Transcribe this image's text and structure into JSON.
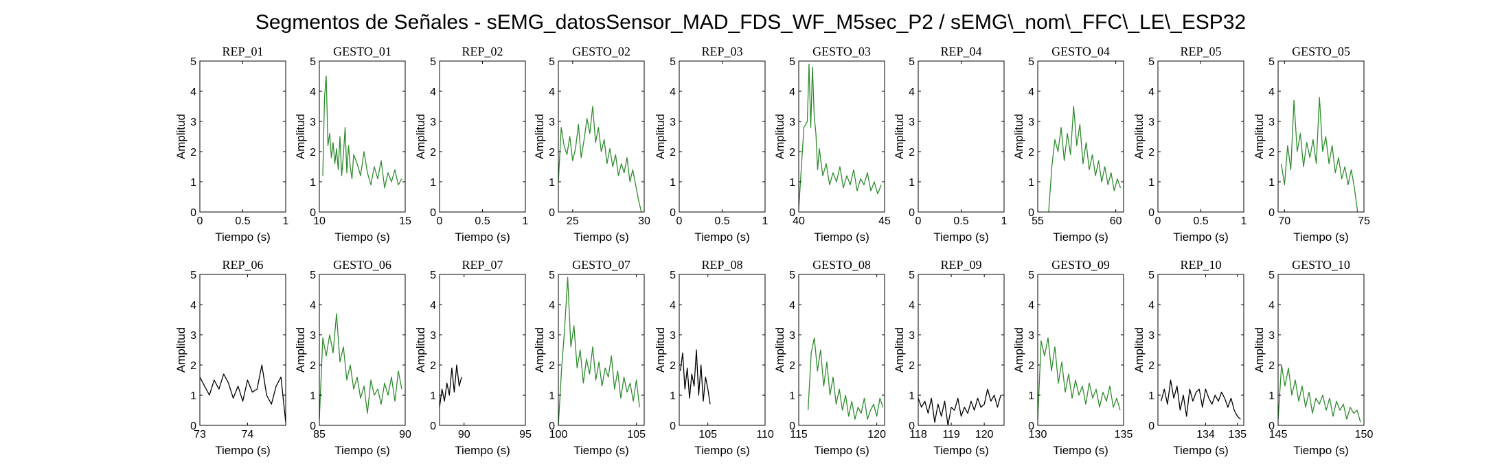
{
  "figure_title": "Segmentos de Señales - sEMG_datosSensor_MAD_FDS_WF_M5sec_P2 / sEMG\\_nom\\_FFC\\_LE\\_ESP32",
  "colors": {
    "rep": "#000000",
    "gesto": "#2e8b2e",
    "axis": "#000000"
  },
  "chart_data": [
    {
      "type": "line",
      "title": "REP_01",
      "xlabel": "Tiempo (s)",
      "ylabel": "Amplitud",
      "xlim": [
        0,
        1
      ],
      "ylim": [
        0,
        5
      ],
      "xticks": [
        0,
        0.5,
        1
      ],
      "xtick_labels": [
        "0",
        "0.5",
        "1"
      ],
      "yticks": [
        0,
        1,
        2,
        3,
        4,
        5
      ],
      "color": "rep",
      "x": [],
      "y": []
    },
    {
      "type": "line",
      "title": "GESTO_01",
      "xlabel": "Tiempo (s)",
      "ylabel": "Amplitud",
      "xlim": [
        10,
        15
      ],
      "ylim": [
        0,
        5
      ],
      "xticks": [
        10,
        15
      ],
      "xtick_labels": [
        "10",
        "15"
      ],
      "yticks": [
        0,
        1,
        2,
        3,
        4,
        5
      ],
      "color": "gesto",
      "x": [
        10.2,
        10.3,
        10.4,
        10.5,
        10.6,
        10.7,
        10.8,
        10.9,
        11.0,
        11.1,
        11.2,
        11.3,
        11.4,
        11.5,
        11.6,
        11.7,
        11.8,
        11.9,
        12.0,
        12.2,
        12.4,
        12.6,
        12.8,
        13.0,
        13.2,
        13.4,
        13.6,
        13.8,
        14.0,
        14.2,
        14.4,
        14.6,
        14.8
      ],
      "y": [
        1.2,
        3.8,
        4.5,
        2.2,
        2.6,
        1.8,
        2.3,
        1.6,
        2.1,
        1.4,
        2.5,
        1.2,
        1.9,
        2.8,
        1.3,
        2.2,
        1.5,
        1.1,
        1.9,
        1.6,
        1.2,
        2.0,
        1.3,
        0.9,
        1.5,
        1.1,
        1.7,
        0.8,
        1.3,
        1.0,
        1.4,
        0.9,
        1.1
      ]
    },
    {
      "type": "line",
      "title": "REP_02",
      "xlabel": "Tiempo (s)",
      "ylabel": "Amplitud",
      "xlim": [
        0,
        1
      ],
      "ylim": [
        0,
        5
      ],
      "xticks": [
        0,
        0.5,
        1
      ],
      "xtick_labels": [
        "0",
        "0.5",
        "1"
      ],
      "yticks": [
        0,
        1,
        2,
        3,
        4,
        5
      ],
      "color": "rep",
      "x": [],
      "y": []
    },
    {
      "type": "line",
      "title": "GESTO_02",
      "xlabel": "Tiempo (s)",
      "ylabel": "Amplitud",
      "xlim": [
        24,
        30
      ],
      "ylim": [
        0,
        5
      ],
      "xticks": [
        25,
        30
      ],
      "xtick_labels": [
        "25",
        "30"
      ],
      "yticks": [
        0,
        1,
        2,
        3,
        4,
        5
      ],
      "color": "gesto",
      "x": [
        24.0,
        24.2,
        24.4,
        24.6,
        24.8,
        25.0,
        25.2,
        25.4,
        25.6,
        25.8,
        26.0,
        26.2,
        26.4,
        26.6,
        26.8,
        27.0,
        27.2,
        27.4,
        27.6,
        27.8,
        28.0,
        28.2,
        28.4,
        28.6,
        28.8,
        29.0,
        29.2,
        29.4,
        29.6,
        29.8
      ],
      "y": [
        1.0,
        2.8,
        2.2,
        1.9,
        2.5,
        1.7,
        2.1,
        2.9,
        1.8,
        2.4,
        3.1,
        2.6,
        3.5,
        2.3,
        2.8,
        2.0,
        2.4,
        1.6,
        2.1,
        1.5,
        1.9,
        1.2,
        1.6,
        1.3,
        1.8,
        1.0,
        1.4,
        0.9,
        0.4,
        0.0
      ]
    },
    {
      "type": "line",
      "title": "REP_03",
      "xlabel": "Tiempo (s)",
      "ylabel": "Amplitud",
      "xlim": [
        0,
        1
      ],
      "ylim": [
        0,
        5
      ],
      "xticks": [
        0,
        0.5,
        1
      ],
      "xtick_labels": [
        "0",
        "0.5",
        "1"
      ],
      "yticks": [
        0,
        1,
        2,
        3,
        4,
        5
      ],
      "color": "rep",
      "x": [],
      "y": []
    },
    {
      "type": "line",
      "title": "GESTO_03",
      "xlabel": "Tiempo (s)",
      "ylabel": "Amplitud",
      "xlim": [
        40,
        45
      ],
      "ylim": [
        0,
        5
      ],
      "xticks": [
        40,
        45
      ],
      "xtick_labels": [
        "40",
        "45"
      ],
      "yticks": [
        0,
        1,
        2,
        3,
        4,
        5
      ],
      "color": "gesto",
      "x": [
        40.0,
        40.3,
        40.5,
        40.6,
        40.7,
        40.8,
        40.9,
        41.0,
        41.1,
        41.2,
        41.4,
        41.6,
        41.8,
        42.0,
        42.2,
        42.4,
        42.6,
        42.8,
        43.0,
        43.2,
        43.4,
        43.6,
        43.8,
        44.0,
        44.2,
        44.4,
        44.6,
        44.8
      ],
      "y": [
        0.1,
        2.8,
        3.0,
        4.9,
        2.8,
        4.8,
        3.2,
        2.6,
        1.4,
        2.1,
        1.2,
        1.6,
        0.9,
        1.3,
        1.0,
        1.5,
        0.8,
        1.2,
        0.9,
        1.4,
        0.7,
        1.1,
        0.9,
        1.3,
        0.7,
        1.0,
        0.6,
        0.9
      ]
    },
    {
      "type": "line",
      "title": "REP_04",
      "xlabel": "Tiempo (s)",
      "ylabel": "Amplitud",
      "xlim": [
        0,
        1
      ],
      "ylim": [
        0,
        5
      ],
      "xticks": [
        0,
        0.5,
        1
      ],
      "xtick_labels": [
        "0",
        "0.5",
        "1"
      ],
      "yticks": [
        0,
        1,
        2,
        3,
        4,
        5
      ],
      "color": "rep",
      "x": [],
      "y": []
    },
    {
      "type": "line",
      "title": "GESTO_04",
      "xlabel": "Tiempo (s)",
      "ylabel": "Amplitud",
      "xlim": [
        55,
        60.5
      ],
      "ylim": [
        0,
        5
      ],
      "xticks": [
        55,
        60
      ],
      "xtick_labels": [
        "55",
        "60"
      ],
      "yticks": [
        0,
        1,
        2,
        3,
        4,
        5
      ],
      "color": "gesto",
      "x": [
        55.7,
        55.9,
        56.1,
        56.3,
        56.5,
        56.7,
        56.9,
        57.1,
        57.3,
        57.5,
        57.7,
        57.9,
        58.1,
        58.3,
        58.5,
        58.7,
        58.9,
        59.1,
        59.3,
        59.5,
        59.7,
        59.9,
        60.1,
        60.3
      ],
      "y": [
        0.0,
        1.5,
        2.4,
        2.0,
        2.8,
        1.7,
        2.6,
        1.9,
        3.5,
        2.2,
        2.9,
        1.6,
        2.3,
        1.4,
        1.9,
        1.2,
        1.7,
        1.0,
        1.5,
        0.9,
        1.3,
        0.7,
        1.1,
        0.8
      ]
    },
    {
      "type": "line",
      "title": "REP_05",
      "xlabel": "Tiempo (s)",
      "ylabel": "Amplitud",
      "xlim": [
        0,
        1
      ],
      "ylim": [
        0,
        5
      ],
      "xticks": [
        0,
        0.5,
        1
      ],
      "xtick_labels": [
        "0",
        "0.5",
        "1"
      ],
      "yticks": [
        0,
        1,
        2,
        3,
        4,
        5
      ],
      "color": "rep",
      "x": [],
      "y": []
    },
    {
      "type": "line",
      "title": "GESTO_05",
      "xlabel": "Tiempo (s)",
      "ylabel": "Amplitud",
      "xlim": [
        69.6,
        75
      ],
      "ylim": [
        0,
        5
      ],
      "xticks": [
        70,
        75
      ],
      "xtick_labels": [
        "70",
        "75"
      ],
      "yticks": [
        0,
        1,
        2,
        3,
        4,
        5
      ],
      "color": "gesto",
      "x": [
        69.8,
        70.0,
        70.2,
        70.4,
        70.6,
        70.8,
        71.0,
        71.2,
        71.4,
        71.6,
        71.8,
        72.0,
        72.2,
        72.4,
        72.6,
        72.8,
        73.0,
        73.2,
        73.4,
        73.6,
        73.8,
        74.0,
        74.2,
        74.4,
        74.6
      ],
      "y": [
        1.6,
        0.9,
        2.2,
        1.4,
        3.7,
        2.0,
        2.6,
        1.5,
        2.3,
        1.8,
        2.4,
        1.6,
        3.8,
        2.0,
        2.5,
        1.6,
        2.2,
        1.3,
        1.8,
        1.1,
        1.5,
        0.9,
        1.4,
        0.8,
        0.0
      ]
    },
    {
      "type": "line",
      "title": "REP_06",
      "xlabel": "Tiempo (s)",
      "ylabel": "Amplitud",
      "xlim": [
        73,
        74.8
      ],
      "ylim": [
        0,
        5
      ],
      "xticks": [
        73,
        74
      ],
      "xtick_labels": [
        "73",
        "74"
      ],
      "yticks": [
        0,
        1,
        2,
        3,
        4,
        5
      ],
      "color": "rep",
      "x": [
        73.0,
        73.1,
        73.2,
        73.3,
        73.4,
        73.5,
        73.6,
        73.7,
        73.8,
        73.9,
        74.0,
        74.1,
        74.2,
        74.3,
        74.4,
        74.5,
        74.6,
        74.7,
        74.8
      ],
      "y": [
        1.6,
        1.3,
        1.0,
        1.5,
        1.2,
        1.7,
        1.4,
        0.9,
        1.3,
        0.8,
        1.5,
        1.1,
        1.2,
        2.0,
        1.0,
        0.7,
        1.3,
        1.6,
        0.1
      ]
    },
    {
      "type": "line",
      "title": "GESTO_06",
      "xlabel": "Tiempo (s)",
      "ylabel": "Amplitud",
      "xlim": [
        85,
        90
      ],
      "ylim": [
        0,
        5
      ],
      "xticks": [
        85,
        90
      ],
      "xtick_labels": [
        "85",
        "90"
      ],
      "yticks": [
        0,
        1,
        2,
        3,
        4,
        5
      ],
      "color": "gesto",
      "x": [
        85.0,
        85.2,
        85.4,
        85.6,
        85.8,
        86.0,
        86.2,
        86.4,
        86.6,
        86.8,
        87.0,
        87.2,
        87.4,
        87.6,
        87.8,
        88.0,
        88.2,
        88.4,
        88.6,
        88.8,
        89.0,
        89.2,
        89.4,
        89.6,
        89.8
      ],
      "y": [
        0.2,
        2.9,
        2.3,
        3.0,
        2.4,
        3.7,
        2.1,
        2.6,
        1.5,
        2.0,
        1.2,
        1.6,
        0.9,
        1.3,
        0.4,
        1.5,
        1.0,
        1.2,
        0.7,
        1.4,
        1.0,
        1.6,
        0.8,
        1.8,
        1.2
      ]
    },
    {
      "type": "line",
      "title": "REP_07",
      "xlabel": "Tiempo (s)",
      "ylabel": "Amplitud",
      "xlim": [
        88,
        95
      ],
      "ylim": [
        0,
        5
      ],
      "xticks": [
        90,
        95
      ],
      "xtick_labels": [
        "90",
        "95"
      ],
      "yticks": [
        0,
        1,
        2,
        3,
        4,
        5
      ],
      "color": "rep",
      "x": [
        88.0,
        88.2,
        88.4,
        88.6,
        88.8,
        89.0,
        89.2,
        89.4,
        89.6,
        89.8
      ],
      "y": [
        0.6,
        1.2,
        0.8,
        1.4,
        1.0,
        1.9,
        1.1,
        2.0,
        1.3,
        1.6
      ]
    },
    {
      "type": "line",
      "title": "GESTO_07",
      "xlabel": "Tiempo (s)",
      "ylabel": "Amplitud",
      "xlim": [
        100,
        105.5
      ],
      "ylim": [
        0,
        5
      ],
      "xticks": [
        100,
        105
      ],
      "xtick_labels": [
        "100",
        "105"
      ],
      "yticks": [
        0,
        1,
        2,
        3,
        4,
        5
      ],
      "color": "gesto",
      "x": [
        100.0,
        100.2,
        100.4,
        100.6,
        100.8,
        101.0,
        101.2,
        101.4,
        101.6,
        101.8,
        102.0,
        102.2,
        102.4,
        102.6,
        102.8,
        103.0,
        103.2,
        103.4,
        103.6,
        103.8,
        104.0,
        104.2,
        104.4,
        104.6,
        104.8,
        105.0,
        105.2
      ],
      "y": [
        0.0,
        1.8,
        3.2,
        4.9,
        2.6,
        3.3,
        1.9,
        2.5,
        1.4,
        2.2,
        1.7,
        2.6,
        1.5,
        2.1,
        1.3,
        1.9,
        1.6,
        2.3,
        1.2,
        1.8,
        0.9,
        1.6,
        1.1,
        1.4,
        0.8,
        1.5,
        0.6
      ]
    },
    {
      "type": "line",
      "title": "REP_08",
      "xlabel": "Tiempo (s)",
      "ylabel": "Amplitud",
      "xlim": [
        102.5,
        110
      ],
      "ylim": [
        0,
        5
      ],
      "xticks": [
        105,
        110
      ],
      "xtick_labels": [
        "105",
        "110"
      ],
      "yticks": [
        0,
        1,
        2,
        3,
        4,
        5
      ],
      "color": "rep",
      "x": [
        102.6,
        102.8,
        103.0,
        103.2,
        103.4,
        103.6,
        103.8,
        104.0,
        104.2,
        104.4,
        104.6,
        104.8,
        105.0,
        105.2
      ],
      "y": [
        1.8,
        2.4,
        1.2,
        1.9,
        0.9,
        1.7,
        1.3,
        2.5,
        1.0,
        2.0,
        0.8,
        1.6,
        1.2,
        0.7
      ]
    },
    {
      "type": "line",
      "title": "GESTO_08",
      "xlabel": "Tiempo (s)",
      "ylabel": "Amplitud",
      "xlim": [
        115,
        120.5
      ],
      "ylim": [
        0,
        5
      ],
      "xticks": [
        115,
        120
      ],
      "xtick_labels": [
        "115",
        "120"
      ],
      "yticks": [
        0,
        1,
        2,
        3,
        4,
        5
      ],
      "color": "gesto",
      "x": [
        115.6,
        115.8,
        116.0,
        116.2,
        116.4,
        116.6,
        116.8,
        117.0,
        117.2,
        117.4,
        117.6,
        117.8,
        118.0,
        118.2,
        118.4,
        118.6,
        118.8,
        119.0,
        119.2,
        119.4,
        119.6,
        119.8,
        120.0,
        120.2,
        120.4
      ],
      "y": [
        0.5,
        2.4,
        2.9,
        1.8,
        2.5,
        1.3,
        2.1,
        1.0,
        1.6,
        0.7,
        1.2,
        0.5,
        1.0,
        0.3,
        0.8,
        0.2,
        0.6,
        0.4,
        0.9,
        0.2,
        0.5,
        0.7,
        0.3,
        0.9,
        0.6
      ]
    },
    {
      "type": "line",
      "title": "REP_09",
      "xlabel": "Tiempo (s)",
      "ylabel": "Amplitud",
      "xlim": [
        118,
        120.6
      ],
      "ylim": [
        0,
        5
      ],
      "xticks": [
        118,
        119,
        120
      ],
      "xtick_labels": [
        "118",
        "119",
        "120"
      ],
      "yticks": [
        0,
        1,
        2,
        3,
        4,
        5
      ],
      "color": "rep",
      "x": [
        118.0,
        118.1,
        118.2,
        118.3,
        118.4,
        118.5,
        118.6,
        118.7,
        118.8,
        118.9,
        119.0,
        119.1,
        119.2,
        119.3,
        119.4,
        119.5,
        119.6,
        119.7,
        119.8,
        119.9,
        120.0,
        120.1,
        120.2,
        120.3,
        120.4,
        120.5
      ],
      "y": [
        0.9,
        0.6,
        0.8,
        0.4,
        0.9,
        0.1,
        0.7,
        0.3,
        0.8,
        0.0,
        0.6,
        0.5,
        0.9,
        0.3,
        0.6,
        0.4,
        0.8,
        0.5,
        0.9,
        0.6,
        0.7,
        1.2,
        0.8,
        1.0,
        0.6,
        1.0
      ]
    },
    {
      "type": "line",
      "title": "GESTO_09",
      "xlabel": "Tiempo (s)",
      "ylabel": "Amplitud",
      "xlim": [
        130,
        135
      ],
      "ylim": [
        0,
        5
      ],
      "xticks": [
        130,
        135
      ],
      "xtick_labels": [
        "130",
        "135"
      ],
      "yticks": [
        0,
        1,
        2,
        3,
        4,
        5
      ],
      "color": "gesto",
      "x": [
        130.0,
        130.2,
        130.4,
        130.6,
        130.8,
        131.0,
        131.2,
        131.4,
        131.6,
        131.8,
        132.0,
        132.2,
        132.4,
        132.6,
        132.8,
        133.0,
        133.2,
        133.4,
        133.6,
        133.8,
        134.0,
        134.2,
        134.4,
        134.6,
        134.8
      ],
      "y": [
        0.2,
        2.8,
        2.3,
        2.9,
        1.8,
        2.6,
        1.4,
        2.1,
        1.1,
        1.7,
        0.9,
        1.5,
        1.0,
        1.3,
        0.7,
        1.4,
        0.9,
        1.2,
        0.6,
        1.1,
        0.8,
        1.3,
        0.6,
        0.9,
        0.5
      ]
    },
    {
      "type": "line",
      "title": "REP_10",
      "xlabel": "Tiempo (s)",
      "ylabel": "Amplitud",
      "xlim": [
        132.5,
        135.2
      ],
      "ylim": [
        0,
        5
      ],
      "xticks": [
        134,
        135
      ],
      "xtick_labels": [
        "134",
        "135"
      ],
      "yticks": [
        0,
        1,
        2,
        3,
        4,
        5
      ],
      "color": "rep",
      "x": [
        132.6,
        132.7,
        132.8,
        132.9,
        133.0,
        133.1,
        133.2,
        133.3,
        133.4,
        133.5,
        133.6,
        133.7,
        133.8,
        133.9,
        134.0,
        134.1,
        134.2,
        134.3,
        134.4,
        134.5,
        134.6,
        134.7,
        134.8,
        134.9,
        135.0,
        135.1
      ],
      "y": [
        0.8,
        1.2,
        0.7,
        1.5,
        0.9,
        1.3,
        0.5,
        1.0,
        0.3,
        1.2,
        0.8,
        1.1,
        1.2,
        0.6,
        1.2,
        0.9,
        0.7,
        1.0,
        0.8,
        1.1,
        0.9,
        0.6,
        0.9,
        0.5,
        0.3,
        0.2
      ]
    },
    {
      "type": "line",
      "title": "GESTO_10",
      "xlabel": "Tiempo (s)",
      "ylabel": "Amplitud",
      "xlim": [
        145,
        150
      ],
      "ylim": [
        0,
        5
      ],
      "xticks": [
        145,
        150
      ],
      "xtick_labels": [
        "145",
        "150"
      ],
      "yticks": [
        0,
        1,
        2,
        3,
        4,
        5
      ],
      "color": "gesto",
      "x": [
        145.0,
        145.2,
        145.4,
        145.6,
        145.8,
        146.0,
        146.2,
        146.4,
        146.6,
        146.8,
        147.0,
        147.2,
        147.4,
        147.6,
        147.8,
        148.0,
        148.2,
        148.4,
        148.6,
        148.8,
        149.0,
        149.2,
        149.4,
        149.6,
        149.8
      ],
      "y": [
        0.2,
        2.0,
        1.3,
        1.9,
        1.0,
        1.5,
        0.8,
        1.3,
        0.6,
        1.1,
        0.4,
        0.9,
        0.7,
        1.0,
        0.5,
        0.9,
        0.3,
        0.8,
        0.5,
        0.7,
        0.2,
        0.6,
        0.4,
        0.5,
        0.1
      ]
    }
  ]
}
